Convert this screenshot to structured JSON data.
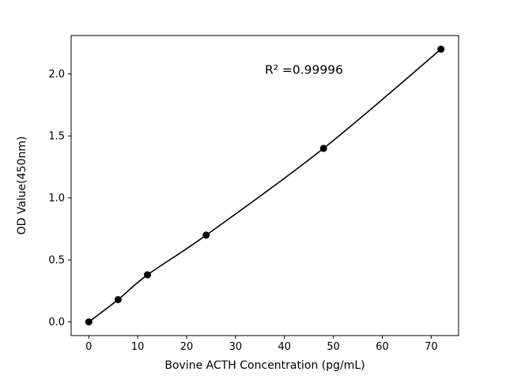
{
  "figure": {
    "background": "#ffffff"
  },
  "chart_data": {
    "type": "scatter",
    "x": [
      0,
      6,
      12,
      24,
      48,
      72
    ],
    "y": [
      0.0,
      0.18,
      0.38,
      0.7,
      1.4,
      2.2
    ],
    "title": "",
    "xlabel": "Bovine ACTH Concentration (pg/mL)",
    "ylabel": "OD Value(450nm)",
    "xlim": [
      -3.6,
      75.6
    ],
    "ylim": [
      -0.11,
      2.31
    ],
    "xticks": [
      0,
      10,
      20,
      30,
      40,
      50,
      60,
      70
    ],
    "xtick_labels": [
      "0",
      "10",
      "20",
      "30",
      "40",
      "50",
      "60",
      "70"
    ],
    "yticks": [
      0.0,
      0.5,
      1.0,
      1.5,
      2.0
    ],
    "ytick_labels": [
      "0.0",
      "0.5",
      "1.0",
      "1.5",
      "2.0"
    ],
    "grid": false,
    "legend_position": "none",
    "line_through_points": true,
    "line_color": "#000000",
    "marker_color": "#000000",
    "annotation": {
      "text": "R² =0.99996",
      "x": 36,
      "y": 2.0
    }
  }
}
